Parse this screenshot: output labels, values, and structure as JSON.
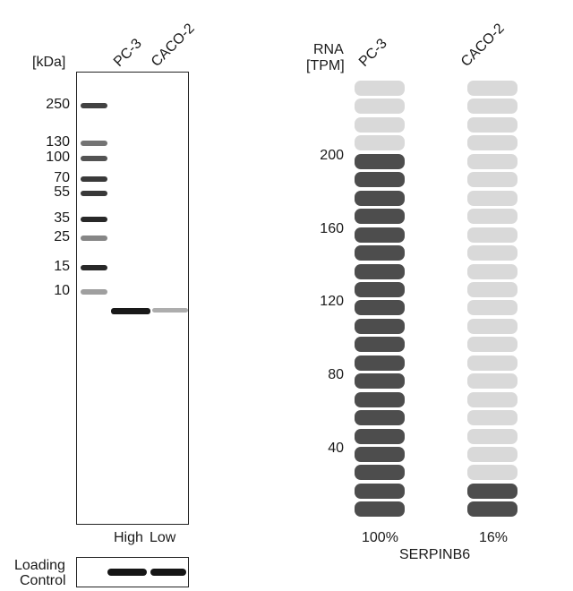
{
  "western_blot": {
    "unit_label": "[kDa]",
    "lanes": [
      "PC-3",
      "CACO-2"
    ],
    "markers": [
      {
        "label": "250",
        "kda": 250,
        "intensity": 0.85
      },
      {
        "label": "130",
        "kda": 130,
        "intensity": 0.55
      },
      {
        "label": "100",
        "kda": 100,
        "intensity": 0.75
      },
      {
        "label": "70",
        "kda": 70,
        "intensity": 0.9
      },
      {
        "label": "55",
        "kda": 55,
        "intensity": 0.9
      },
      {
        "label": "35",
        "kda": 35,
        "intensity": 1.0
      },
      {
        "label": "25",
        "kda": 25,
        "intensity": 0.45
      },
      {
        "label": "15",
        "kda": 15,
        "intensity": 1.0
      },
      {
        "label": "10",
        "kda": 10,
        "intensity": 0.3
      }
    ],
    "sample_bands": [
      {
        "lane": "PC-3",
        "intensity": 1.0
      },
      {
        "lane": "CACO-2",
        "intensity": 0.2
      }
    ],
    "level_label_high": "High",
    "level_label_low": "Low",
    "loading_control_label_1": "Loading",
    "loading_control_label_2": "Control"
  },
  "rna_chart": {
    "ylabel_1": "RNA",
    "ylabel_2": "[TPM]",
    "ticks": [
      "200",
      "160",
      "120",
      "80",
      "40"
    ],
    "gene": "SERPINB6",
    "total_pills": 24,
    "samples": [
      {
        "name": "PC-3",
        "percent_label": "100%",
        "filled": 20
      },
      {
        "name": "CACO-2",
        "percent_label": "16%",
        "filled": 2
      }
    ],
    "colors": {
      "filled": "#4d4d4d",
      "empty": "#d9d9d9"
    }
  }
}
